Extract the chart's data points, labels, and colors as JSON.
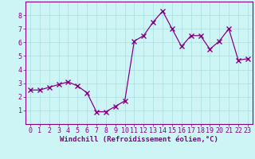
{
  "x": [
    0,
    1,
    2,
    3,
    4,
    5,
    6,
    7,
    8,
    9,
    10,
    11,
    12,
    13,
    14,
    15,
    16,
    17,
    18,
    19,
    20,
    21,
    22,
    23
  ],
  "y": [
    2.5,
    2.5,
    2.7,
    2.9,
    3.1,
    2.8,
    2.3,
    0.9,
    0.9,
    1.3,
    1.7,
    6.1,
    6.5,
    7.5,
    8.3,
    7.0,
    5.7,
    6.5,
    6.5,
    5.5,
    6.1,
    7.0,
    4.7,
    4.8
  ],
  "line_color": "#880088",
  "marker": "x",
  "marker_size": 4,
  "bg_color": "#cef5f5",
  "plot_bg_color": "#cef5f5",
  "grid_color": "#aadddd",
  "axis_color": "#880088",
  "border_color": "#880088",
  "xlabel": "Windchill (Refroidissement éolien,°C)",
  "xlabel_fontsize": 6.5,
  "tick_fontsize": 6.0,
  "ylim": [
    0,
    9
  ],
  "xlim": [
    -0.5,
    23.5
  ],
  "yticks": [
    1,
    2,
    3,
    4,
    5,
    6,
    7,
    8
  ],
  "xticks": [
    0,
    1,
    2,
    3,
    4,
    5,
    6,
    7,
    8,
    9,
    10,
    11,
    12,
    13,
    14,
    15,
    16,
    17,
    18,
    19,
    20,
    21,
    22,
    23
  ]
}
